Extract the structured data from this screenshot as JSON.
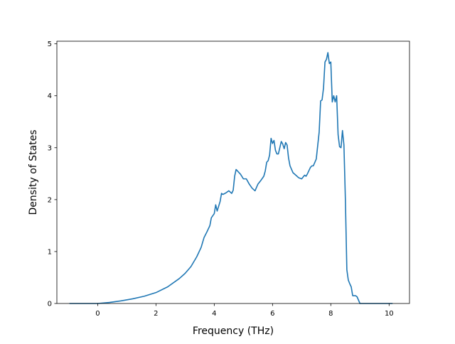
{
  "chart_data": {
    "type": "line",
    "title": "",
    "xlabel": "Frequency (THz)",
    "ylabel": "Density of States",
    "xlim": [
      -1.4,
      10.7
    ],
    "ylim": [
      0,
      5.05
    ],
    "x_ticks": [
      0,
      2,
      4,
      6,
      8,
      10
    ],
    "y_ticks": [
      0,
      1,
      2,
      3,
      4,
      5
    ],
    "x_tick_labels": [
      "0",
      "2",
      "4",
      "6",
      "8",
      "10"
    ],
    "y_tick_labels": [
      "0",
      "1",
      "2",
      "3",
      "4",
      "5"
    ],
    "grid": false,
    "legend": "none",
    "line_color": "#1f77b4",
    "series": [
      {
        "x": [
          -0.95,
          -0.5,
          0.0,
          0.4,
          0.8,
          1.2,
          1.6,
          2.0,
          2.4,
          2.8,
          3.0,
          3.2,
          3.4,
          3.55,
          3.65,
          3.75,
          3.85,
          3.9,
          4.0,
          4.05,
          4.1,
          4.2,
          4.25,
          4.3,
          4.4,
          4.5,
          4.6,
          4.65,
          4.7,
          4.75,
          4.8,
          4.9,
          5.0,
          5.1,
          5.2,
          5.3,
          5.4,
          5.5,
          5.6,
          5.7,
          5.75,
          5.8,
          5.85,
          5.9,
          5.95,
          6.0,
          6.05,
          6.1,
          6.15,
          6.2,
          6.3,
          6.35,
          6.4,
          6.45,
          6.5,
          6.55,
          6.6,
          6.7,
          6.8,
          6.9,
          7.0,
          7.1,
          7.15,
          7.2,
          7.3,
          7.35,
          7.4,
          7.5,
          7.6,
          7.65,
          7.7,
          7.75,
          7.8,
          7.85,
          7.9,
          7.95,
          8.0,
          8.05,
          8.1,
          8.15,
          8.2,
          8.25,
          8.3,
          8.35,
          8.4,
          8.45,
          8.5,
          8.55,
          8.6,
          8.65,
          8.7,
          8.75,
          8.8,
          8.85,
          8.9,
          9.0,
          9.1,
          9.15,
          9.2,
          9.5,
          9.8,
          10.1
        ],
        "y": [
          0.0,
          0.0,
          0.0,
          0.02,
          0.05,
          0.09,
          0.14,
          0.21,
          0.32,
          0.48,
          0.58,
          0.71,
          0.9,
          1.08,
          1.27,
          1.38,
          1.5,
          1.65,
          1.73,
          1.9,
          1.78,
          1.96,
          2.12,
          2.1,
          2.13,
          2.17,
          2.12,
          2.18,
          2.45,
          2.58,
          2.55,
          2.49,
          2.4,
          2.4,
          2.3,
          2.22,
          2.17,
          2.3,
          2.37,
          2.45,
          2.55,
          2.72,
          2.75,
          2.86,
          3.18,
          3.08,
          3.14,
          2.95,
          2.88,
          2.88,
          3.12,
          3.07,
          2.98,
          3.1,
          3.05,
          2.8,
          2.65,
          2.52,
          2.47,
          2.42,
          2.4,
          2.47,
          2.45,
          2.5,
          2.62,
          2.65,
          2.65,
          2.78,
          3.3,
          3.9,
          3.92,
          4.15,
          4.65,
          4.7,
          4.83,
          4.62,
          4.65,
          3.88,
          4.0,
          3.88,
          4.0,
          3.25,
          3.02,
          3.0,
          3.33,
          3.05,
          2.0,
          0.65,
          0.45,
          0.38,
          0.32,
          0.15,
          0.15,
          0.15,
          0.13,
          0.0,
          0.0,
          0.0,
          0.0,
          0.0,
          0.0,
          0.0
        ]
      }
    ]
  }
}
